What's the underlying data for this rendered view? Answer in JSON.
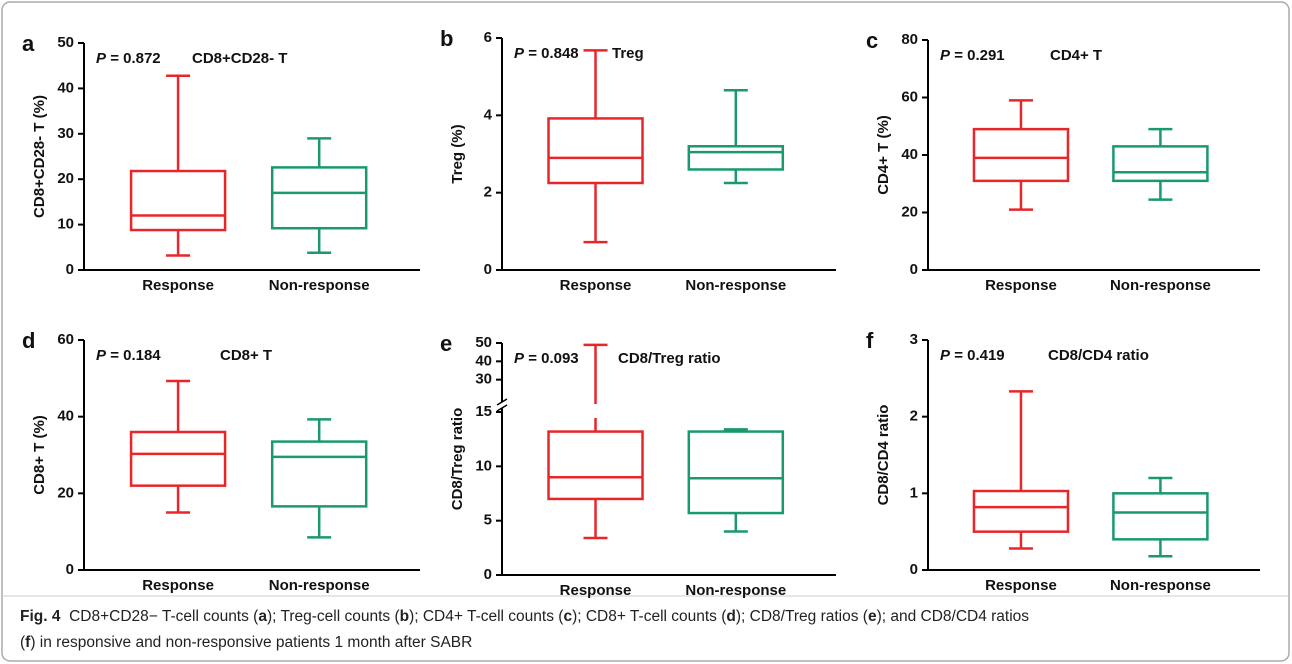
{
  "chart_data": [
    {
      "type": "box",
      "panel": "a",
      "ylabel": "CD8+CD28- T (%)",
      "stat_symbol": "P",
      "stat_text": "= 0.872",
      "annotation": "CD8+CD28- T",
      "categories": [
        "Response",
        "Non-response"
      ],
      "boxes": [
        {
          "color": "#e8262a",
          "low": 3.2,
          "q1": 8.8,
          "median": 12,
          "q3": 21.8,
          "high": 42.8
        },
        {
          "color": "#1a9a6c",
          "low": 3.8,
          "q1": 9.2,
          "median": 17,
          "q3": 22.6,
          "high": 29
        }
      ],
      "ylim": [
        0,
        50
      ],
      "yticks": [
        0,
        10,
        20,
        30,
        40,
        50
      ]
    },
    {
      "type": "box",
      "panel": "b",
      "ylabel": "Treg (%)",
      "stat_symbol": "P",
      "stat_text": "= 0.848",
      "annotation": "Treg",
      "categories": [
        "Response",
        "Non-response"
      ],
      "boxes": [
        {
          "color": "#e8262a",
          "low": 0.72,
          "q1": 2.25,
          "median": 2.9,
          "q3": 3.92,
          "high": 5.68
        },
        {
          "color": "#1a9a6c",
          "low": 2.25,
          "q1": 2.6,
          "median": 3.05,
          "q3": 3.2,
          "high": 4.65
        }
      ],
      "ylim": [
        0,
        6
      ],
      "yticks": [
        0,
        2,
        4,
        6
      ]
    },
    {
      "type": "box",
      "panel": "c",
      "ylabel": "CD4+ T (%)",
      "stat_symbol": "P",
      "stat_text": "= 0.291",
      "annotation": "CD4+ T",
      "categories": [
        "Response",
        "Non-response"
      ],
      "boxes": [
        {
          "color": "#e8262a",
          "low": 21,
          "q1": 31,
          "median": 39,
          "q3": 49,
          "high": 59
        },
        {
          "color": "#1a9a6c",
          "low": 24.5,
          "q1": 31,
          "median": 34,
          "q3": 43,
          "high": 49
        }
      ],
      "ylim": [
        0,
        80
      ],
      "yticks": [
        0,
        20,
        40,
        60,
        80
      ]
    },
    {
      "type": "box",
      "panel": "d",
      "ylabel": "CD8+ T (%)",
      "stat_symbol": "P",
      "stat_text": "= 0.184",
      "annotation": "CD8+ T",
      "categories": [
        "Response",
        "Non-response"
      ],
      "boxes": [
        {
          "color": "#e8262a",
          "low": 15,
          "q1": 22,
          "median": 30.3,
          "q3": 36,
          "high": 49.3
        },
        {
          "color": "#1a9a6c",
          "low": 8.5,
          "q1": 16.6,
          "median": 29.5,
          "q3": 33.5,
          "high": 39.3
        }
      ],
      "ylim": [
        0,
        60
      ],
      "yticks": [
        0,
        20,
        40,
        60
      ]
    },
    {
      "type": "box",
      "panel": "e",
      "ylabel": "CD8/Treg ratio",
      "stat_symbol": "P",
      "stat_text": "= 0.093",
      "annotation": "CD8/Treg ratio",
      "categories": [
        "Response",
        "Non-response"
      ],
      "boxes": [
        {
          "color": "#e8262a",
          "low": 3.4,
          "q1": 7,
          "median": 9,
          "q3": 13.2,
          "high": 49
        },
        {
          "color": "#1a9a6c",
          "low": 4,
          "q1": 5.7,
          "median": 8.9,
          "q3": 13.2,
          "high": 13.4
        }
      ],
      "ylim": [
        0,
        15
      ],
      "yticks": [
        0,
        5,
        10,
        15
      ],
      "ylim_upper": [
        20,
        50
      ],
      "yticks_upper": [
        30,
        40,
        50
      ]
    },
    {
      "type": "box",
      "panel": "f",
      "ylabel": "CD8/CD4 ratio",
      "stat_symbol": "P",
      "stat_text": "= 0.419",
      "annotation": "CD8/CD4 ratio",
      "categories": [
        "Response",
        "Non-response"
      ],
      "boxes": [
        {
          "color": "#e8262a",
          "low": 0.28,
          "q1": 0.5,
          "median": 0.82,
          "q3": 1.03,
          "high": 2.33
        },
        {
          "color": "#1a9a6c",
          "low": 0.18,
          "q1": 0.4,
          "median": 0.75,
          "q3": 1.0,
          "high": 1.2
        }
      ],
      "ylim": [
        0,
        3
      ],
      "yticks": [
        0,
        1,
        2,
        3
      ]
    }
  ],
  "caption": [
    [
      {
        "text": "Fig. 4",
        "bold": true
      },
      {
        "text": "  CD8+CD28− T-cell counts ("
      },
      {
        "text": "a",
        "bold": true
      },
      {
        "text": "); Treg-cell counts ("
      },
      {
        "text": "b",
        "bold": true
      },
      {
        "text": "); CD4+ T-cell counts ("
      },
      {
        "text": "c",
        "bold": true
      },
      {
        "text": "); CD8+ T-cell counts ("
      },
      {
        "text": "d",
        "bold": true
      },
      {
        "text": "); CD8/Treg ratios ("
      },
      {
        "text": "e",
        "bold": true
      },
      {
        "text": "); and CD8/CD4 ratios"
      }
    ],
    [
      {
        "text": "("
      },
      {
        "text": "f",
        "bold": true
      },
      {
        "text": ") in responsive and non-responsive patients 1 month after SABR"
      }
    ]
  ]
}
